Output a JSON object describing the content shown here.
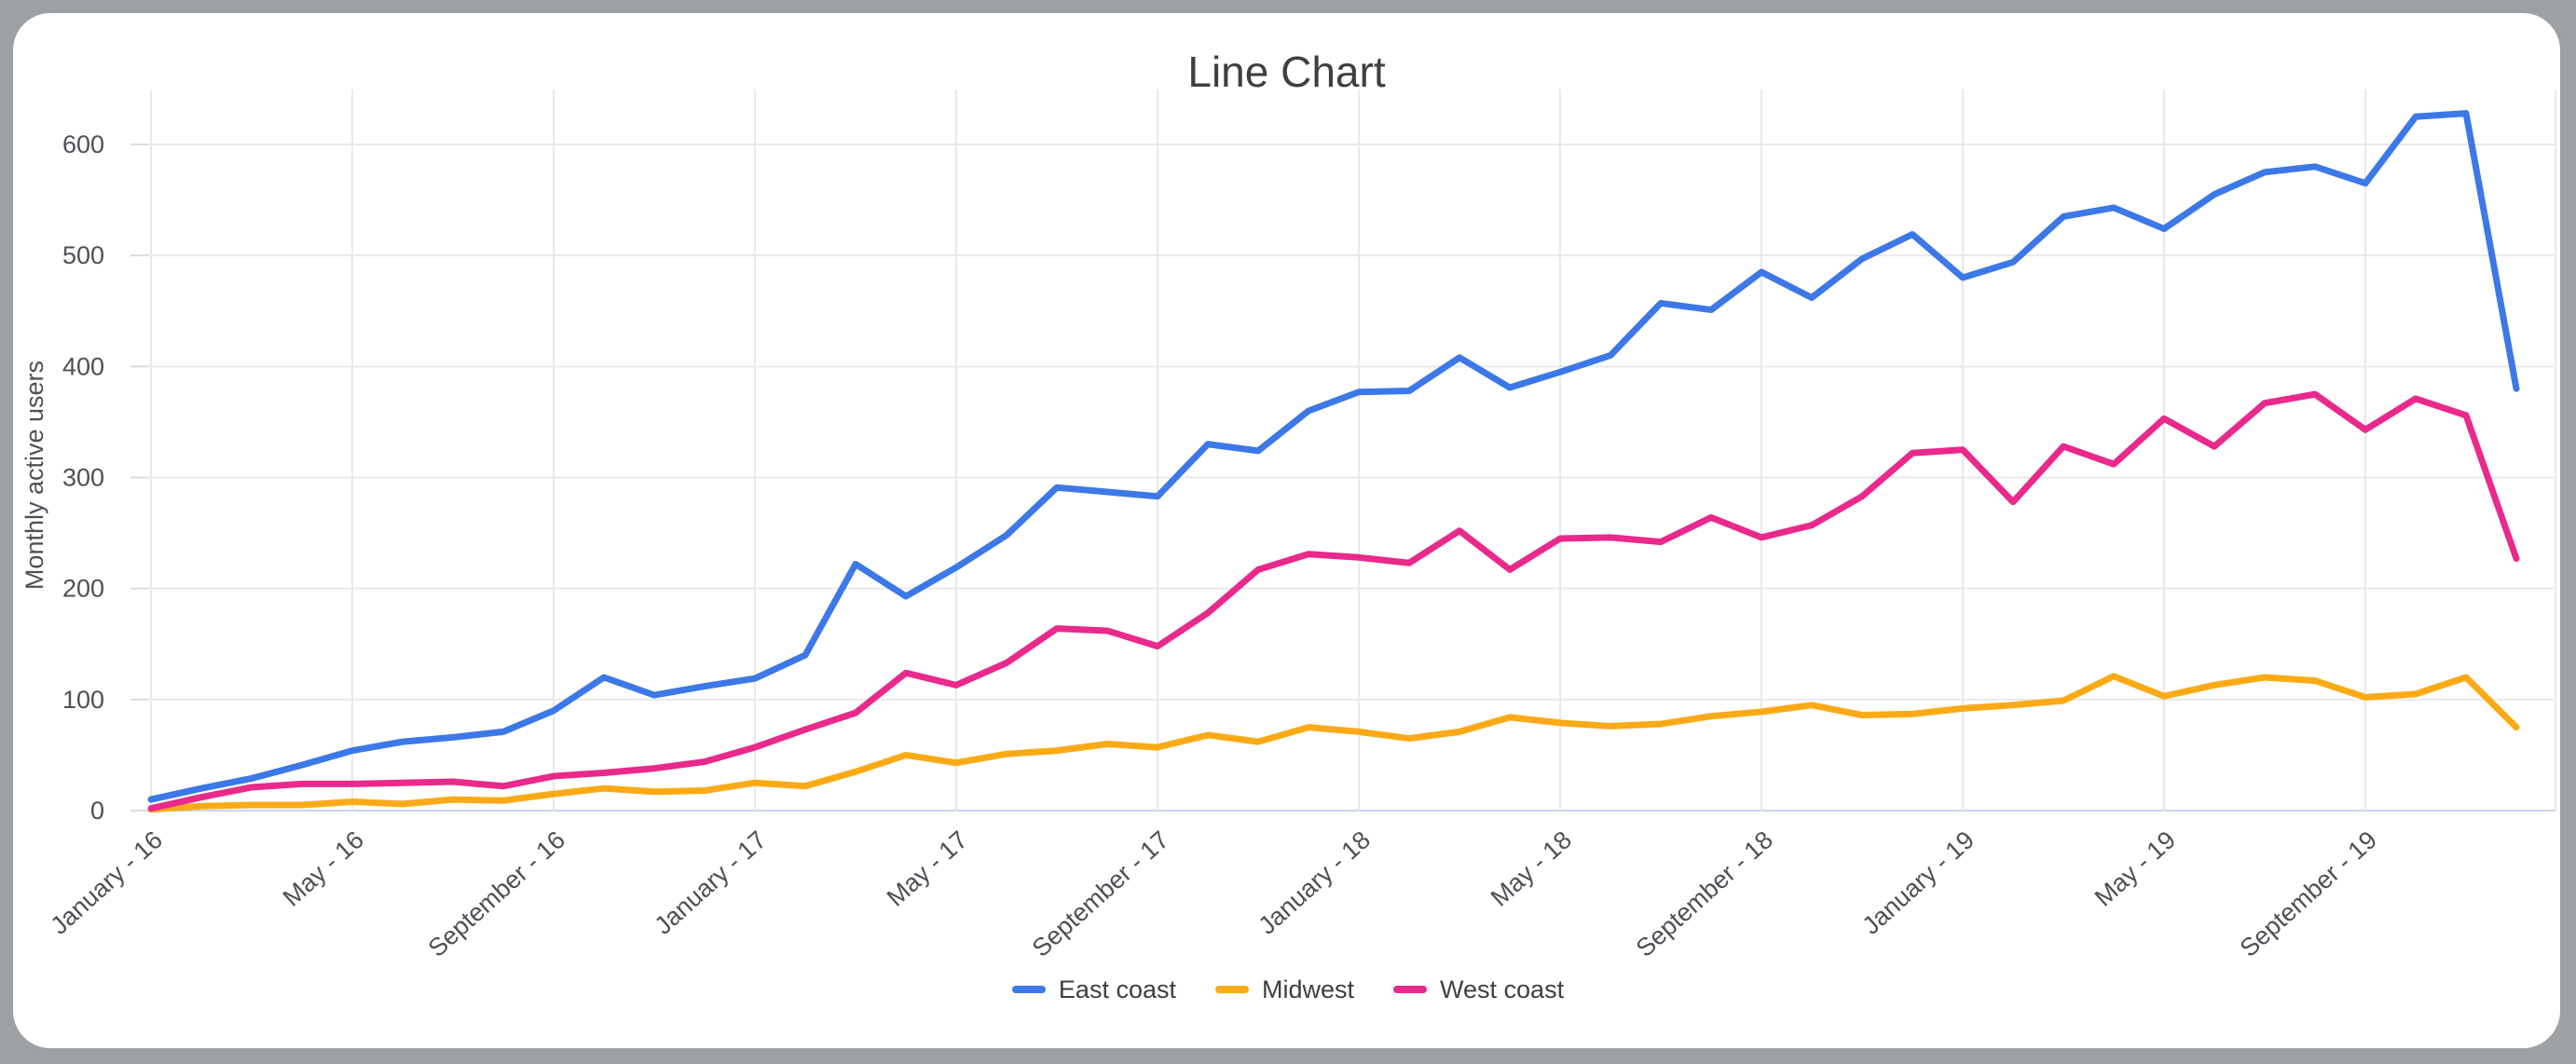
{
  "frame": {
    "background_color": "#9EA1A3",
    "card_color": "#FFFFFF"
  },
  "colors": {
    "title_text": "#3C4043",
    "axis_text": "#4D5156",
    "gridline": "#E9E9E9",
    "tick_stub": "#DADCE0",
    "baseline": "#CBD5EE",
    "east_coast": "#3C78E7",
    "midwest": "#FBAA17",
    "west_coast": "#E9298B"
  },
  "chart_data": {
    "type": "line",
    "title": "Line Chart",
    "xlabel": "",
    "ylabel": "Monthly active users",
    "x_unit": "month",
    "n_points": 48,
    "x_start": "January - 16",
    "x_end": "December - 19",
    "x_tick_labels": [
      "January - 16",
      "May - 16",
      "September - 16",
      "January - 17",
      "May - 17",
      "September - 17",
      "January - 18",
      "May - 18",
      "September - 18",
      "January - 19",
      "May - 19",
      "September - 19"
    ],
    "x_tick_indices": [
      0,
      4,
      8,
      12,
      16,
      20,
      24,
      28,
      32,
      36,
      40,
      44
    ],
    "y_ticks": [
      0,
      100,
      200,
      300,
      400,
      500,
      600
    ],
    "ylim": [
      0,
      640
    ],
    "grid": true,
    "legend_position": "bottom",
    "series": [
      {
        "name": "East coast",
        "color": "#3C78E7",
        "values": [
          10,
          20,
          29,
          41,
          54,
          62,
          66,
          71,
          90,
          120,
          104,
          112,
          119,
          140,
          222,
          193,
          219,
          248,
          291,
          287,
          283,
          330,
          324,
          360,
          377,
          378,
          408,
          381,
          395,
          410,
          457,
          451,
          485,
          462,
          497,
          519,
          480,
          494,
          535,
          543,
          524,
          555,
          575,
          580,
          565,
          625,
          628,
          380
        ]
      },
      {
        "name": "Midwest",
        "color": "#FBAA17",
        "values": [
          1,
          4,
          5,
          5,
          8,
          6,
          10,
          9,
          15,
          20,
          17,
          18,
          25,
          22,
          35,
          50,
          43,
          51,
          54,
          60,
          57,
          68,
          62,
          75,
          71,
          65,
          71,
          84,
          79,
          76,
          78,
          85,
          89,
          95,
          86,
          87,
          92,
          95,
          99,
          121,
          103,
          113,
          120,
          117,
          102,
          105,
          120,
          75
        ]
      },
      {
        "name": "West coast",
        "color": "#E9298B",
        "values": [
          2,
          12,
          21,
          24,
          24,
          25,
          26,
          22,
          31,
          34,
          38,
          44,
          57,
          73,
          88,
          124,
          113,
          133,
          164,
          162,
          148,
          178,
          217,
          231,
          228,
          223,
          252,
          217,
          245,
          246,
          242,
          264,
          246,
          257,
          283,
          322,
          325,
          278,
          328,
          312,
          353,
          328,
          367,
          375,
          343,
          371,
          356,
          227
        ]
      }
    ]
  }
}
